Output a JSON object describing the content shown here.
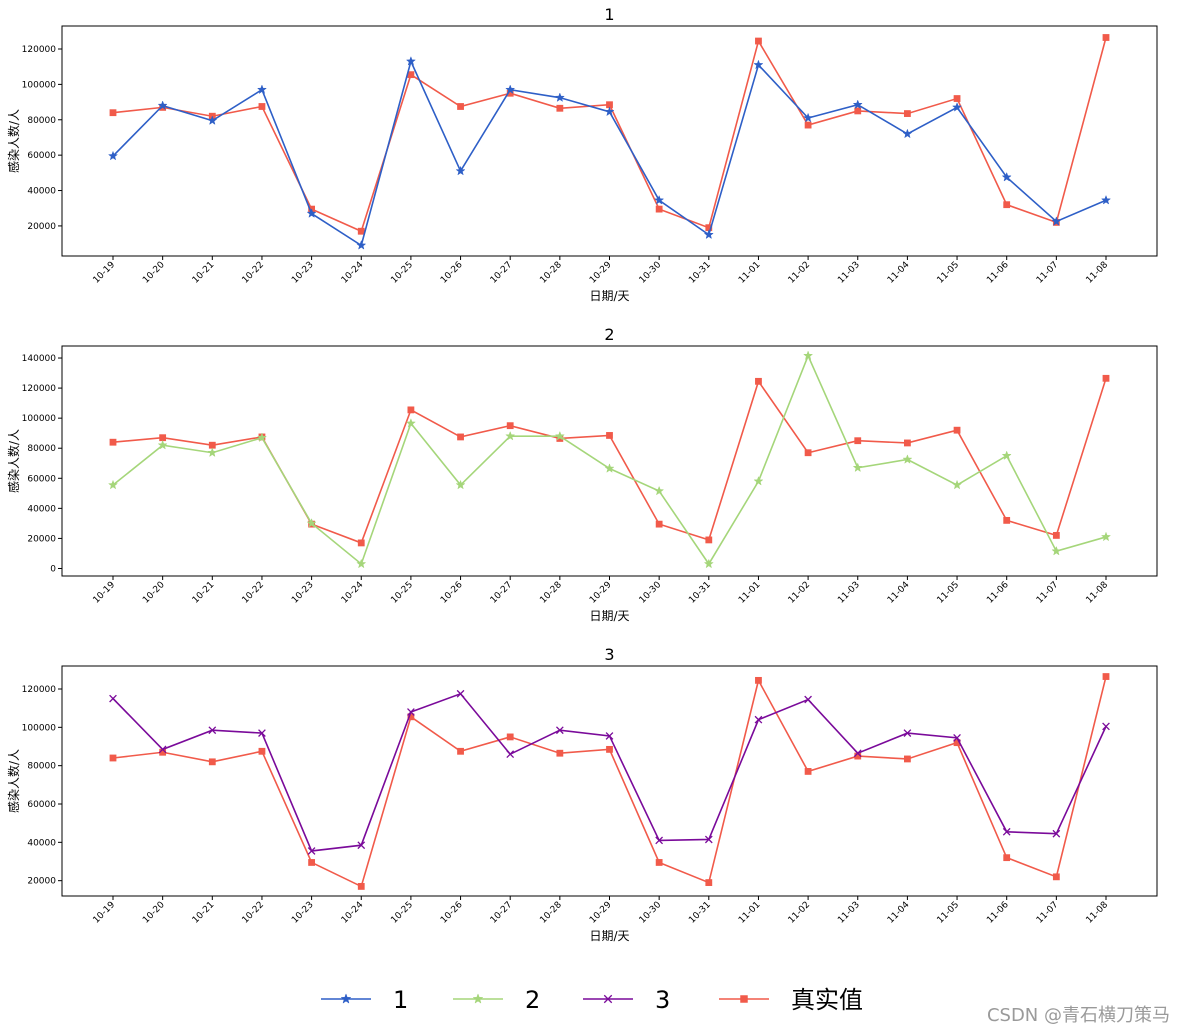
{
  "chart_data": [
    {
      "type": "line",
      "title": "1",
      "xlabel": "日期/天",
      "ylabel": "感染人数/人",
      "ylim": [
        3000,
        133000
      ],
      "yticks": [
        20000,
        40000,
        60000,
        80000,
        100000,
        120000
      ],
      "categories": [
        "10-19",
        "10-20",
        "10-21",
        "10-22",
        "10-23",
        "10-24",
        "10-25",
        "10-26",
        "10-27",
        "10-28",
        "10-29",
        "10-30",
        "10-31",
        "11-01",
        "11-02",
        "11-03",
        "11-04",
        "11-05",
        "11-06",
        "11-07",
        "11-08"
      ],
      "series": [
        {
          "name": "1",
          "color": "#2e5fc7",
          "marker": "star",
          "values": [
            59500,
            88000,
            79500,
            97000,
            27000,
            9000,
            113000,
            51000,
            97000,
            92500,
            84500,
            34500,
            15000,
            111000,
            81000,
            88500,
            72000,
            87000,
            47500,
            22500,
            34500
          ]
        },
        {
          "name": "真实值",
          "color": "#f15a4a",
          "marker": "square",
          "values": [
            84000,
            87000,
            82000,
            87500,
            29500,
            17000,
            105500,
            87500,
            95000,
            86500,
            88500,
            29500,
            19000,
            124500,
            77000,
            85000,
            83500,
            92000,
            32000,
            22000,
            126500
          ]
        }
      ]
    },
    {
      "type": "line",
      "title": "2",
      "xlabel": "日期/天",
      "ylabel": "感染人数/人",
      "ylim": [
        -5000,
        148000
      ],
      "yticks": [
        0,
        20000,
        40000,
        60000,
        80000,
        100000,
        120000,
        140000
      ],
      "categories": [
        "10-19",
        "10-20",
        "10-21",
        "10-22",
        "10-23",
        "10-24",
        "10-25",
        "10-26",
        "10-27",
        "10-28",
        "10-29",
        "10-30",
        "10-31",
        "11-01",
        "11-02",
        "11-03",
        "11-04",
        "11-05",
        "11-06",
        "11-07",
        "11-08"
      ],
      "series": [
        {
          "name": "2",
          "color": "#a5d67a",
          "marker": "star",
          "values": [
            55500,
            82000,
            77000,
            87000,
            30000,
            3000,
            96500,
            55500,
            88000,
            88000,
            66500,
            51500,
            3000,
            58000,
            141500,
            67000,
            72500,
            55500,
            75000,
            11500,
            21000
          ]
        },
        {
          "name": "真实值",
          "color": "#f15a4a",
          "marker": "square",
          "values": [
            84000,
            87000,
            82000,
            87500,
            29500,
            17000,
            105500,
            87500,
            95000,
            86500,
            88500,
            29500,
            19000,
            124500,
            77000,
            85000,
            83500,
            92000,
            32000,
            22000,
            126500
          ]
        }
      ]
    },
    {
      "type": "line",
      "title": "3",
      "xlabel": "日期/天",
      "ylabel": "感染人数/人",
      "ylim": [
        12000,
        132000
      ],
      "yticks": [
        20000,
        40000,
        60000,
        80000,
        100000,
        120000
      ],
      "categories": [
        "10-19",
        "10-20",
        "10-21",
        "10-22",
        "10-23",
        "10-24",
        "10-25",
        "10-26",
        "10-27",
        "10-28",
        "10-29",
        "10-30",
        "10-31",
        "11-01",
        "11-02",
        "11-03",
        "11-04",
        "11-05",
        "11-06",
        "11-07",
        "11-08"
      ],
      "series": [
        {
          "name": "3",
          "color": "#7a0a9a",
          "marker": "x",
          "values": [
            115000,
            88500,
            98500,
            97000,
            35500,
            38500,
            108000,
            117500,
            86000,
            98500,
            95500,
            41000,
            41500,
            104000,
            114500,
            86500,
            97000,
            94500,
            45500,
            44500,
            100500
          ]
        },
        {
          "name": "真实值",
          "color": "#f15a4a",
          "marker": "square",
          "values": [
            84000,
            87000,
            82000,
            87500,
            29500,
            17000,
            105500,
            87500,
            95000,
            86500,
            88500,
            29500,
            19000,
            124500,
            77000,
            85000,
            83500,
            92000,
            32000,
            22000,
            126500
          ]
        }
      ]
    }
  ],
  "legend": {
    "placement": "bottom-center",
    "entries": [
      {
        "name": "1",
        "color": "#2e5fc7",
        "marker": "star"
      },
      {
        "name": "2",
        "color": "#a5d67a",
        "marker": "star"
      },
      {
        "name": "3",
        "color": "#7a0a9a",
        "marker": "x"
      },
      {
        "name": "真实值",
        "color": "#f15a4a",
        "marker": "square"
      }
    ]
  },
  "watermark": "CSDN @青石横刀策马"
}
